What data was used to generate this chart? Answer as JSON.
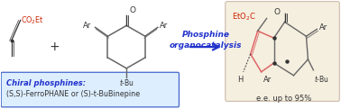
{
  "background_color": "#ffffff",
  "box_fill": "#ddeeff",
  "box_edge": "#4466cc",
  "box_text1": "Chiral phosphines:",
  "box_text2": "(S,S)-FerroPHANE or (S)-t-BuBinepine",
  "arrow_label1": "Phosphine",
  "arrow_label2": "organocatalysis",
  "ee_text": "e.e. up to 95%",
  "blue": "#2233cc",
  "black": "#333333",
  "gray": "#666666",
  "red": "#cc2200",
  "pink": "#dd6666",
  "product_bg": "#f5efe0",
  "product_edge": "#ccbbaa",
  "figsize": [
    3.78,
    1.21
  ],
  "dpi": 100
}
